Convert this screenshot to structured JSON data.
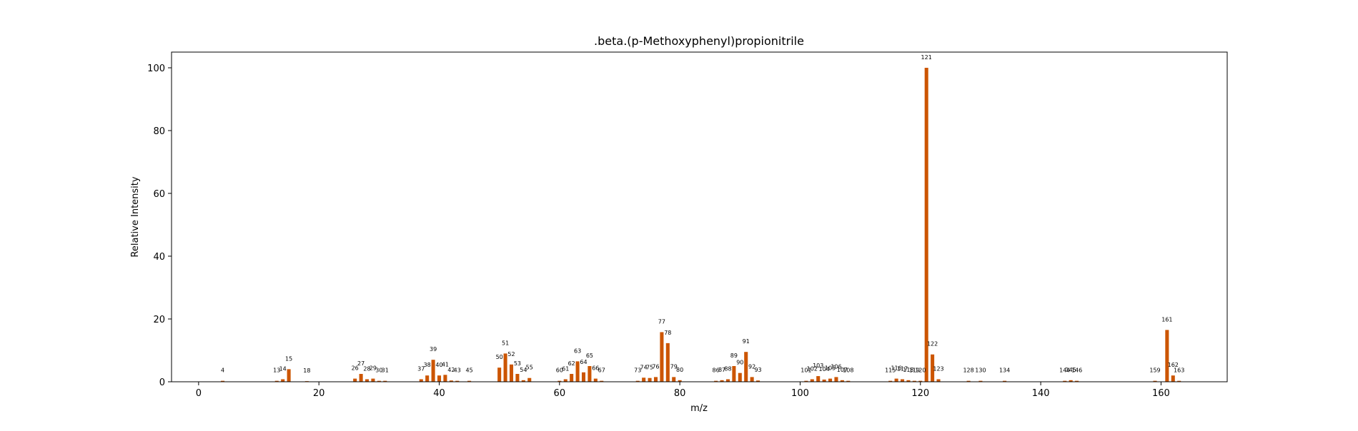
{
  "chart_data": {
    "type": "bar",
    "title": ".beta.(p-Methoxyphenyl)propionitrile",
    "xlabel": "m/z",
    "ylabel": "Relative Intensity",
    "xlim": [
      -4.5,
      171
    ],
    "ylim": [
      0,
      105
    ],
    "xticks": [
      0,
      20,
      40,
      60,
      80,
      100,
      120,
      140,
      160
    ],
    "yticks": [
      0,
      20,
      40,
      60,
      80,
      100
    ],
    "grid": false,
    "bar_color": "#cc5500",
    "series": [
      {
        "x": [
          4,
          13,
          14,
          15,
          18,
          26,
          27,
          28,
          29,
          30,
          31,
          37,
          38,
          39,
          40,
          41,
          42,
          43,
          45,
          50,
          51,
          52,
          53,
          54,
          55,
          60,
          61,
          62,
          63,
          64,
          65,
          66,
          67,
          73,
          74,
          75,
          76,
          77,
          78,
          79,
          80,
          86,
          87,
          88,
          89,
          90,
          91,
          92,
          93,
          101,
          102,
          103,
          104,
          105,
          106,
          107,
          108,
          115,
          116,
          117,
          118,
          119,
          120,
          121,
          122,
          123,
          128,
          130,
          134,
          144,
          145,
          146,
          159,
          161,
          162,
          163
        ],
        "labels": [
          "4",
          "13",
          "14",
          "15",
          "18",
          "26",
          "27",
          "28",
          "29",
          "30",
          "31",
          "37",
          "38",
          "39",
          "40",
          "41",
          "42",
          "43",
          "45",
          "50",
          "51",
          "52",
          "53",
          "54",
          "55",
          "60",
          "61",
          "62",
          "63",
          "64",
          "65",
          "66",
          "67",
          "73",
          "74",
          "75",
          "76",
          "77",
          "78",
          "79",
          "80",
          "86",
          "87",
          "88",
          "89",
          "90",
          "91",
          "92",
          "93",
          "101",
          "102",
          "103",
          "104",
          "105",
          "106",
          "107",
          "108",
          "115",
          "116",
          "117",
          "118",
          "119",
          "120",
          "121",
          "122",
          "123",
          "128",
          "130",
          "134",
          "144",
          "145",
          "146",
          "159",
          "161",
          "162",
          "163"
        ],
        "y": [
          0.3,
          0.3,
          0.8,
          4.0,
          0.2,
          1.0,
          2.5,
          0.8,
          1.0,
          0.3,
          0.3,
          0.8,
          2.0,
          7.0,
          2.0,
          2.2,
          0.4,
          0.3,
          0.3,
          4.5,
          9.0,
          5.5,
          2.5,
          0.5,
          1.2,
          0.3,
          0.8,
          2.5,
          6.5,
          3.0,
          5.0,
          1.0,
          0.3,
          0.3,
          1.3,
          1.2,
          1.5,
          15.8,
          12.3,
          1.5,
          0.5,
          0.3,
          0.5,
          0.8,
          5.0,
          2.8,
          9.5,
          1.5,
          0.4,
          0.3,
          0.8,
          1.8,
          0.7,
          1.0,
          1.5,
          0.5,
          0.3,
          0.3,
          1.0,
          0.8,
          0.5,
          0.3,
          0.3,
          100.0,
          8.7,
          0.8,
          0.3,
          0.3,
          0.3,
          0.3,
          0.5,
          0.3,
          0.3,
          16.5,
          2.0,
          0.3
        ]
      }
    ]
  }
}
